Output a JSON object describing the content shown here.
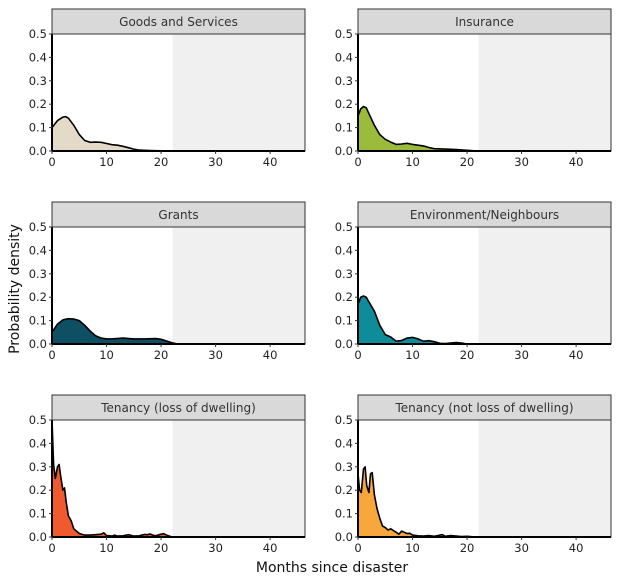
{
  "chart_data": {
    "type": "area",
    "subtype": "faceted density",
    "xlabel": "Months since disaster",
    "ylabel": "Probability density",
    "xlim": [
      0,
      46.4
    ],
    "ylim": [
      0,
      0.5
    ],
    "xticks": [
      0,
      10,
      20,
      30,
      40
    ],
    "xtick_labels": [
      "0",
      "10",
      "20",
      "30",
      "40"
    ],
    "yticks": [
      0,
      0.1,
      0.2,
      0.3,
      0.4,
      0.5
    ],
    "ytick_labels": [
      "0.0",
      "0.1",
      "0.2",
      "0.3",
      "0.4",
      "0.5"
    ],
    "shaded_region": {
      "from": 22.1,
      "to": 46.4,
      "color": "#f0f0f0"
    },
    "panel_background": "#ffffff",
    "strip_color": "#d9d9d9",
    "panels": [
      {
        "title": "Goods and Services",
        "color": "#e4dac8",
        "x": [
          0,
          1,
          2,
          2.5,
          3,
          4,
          5,
          6,
          7,
          8,
          9,
          10,
          11,
          12,
          13,
          14,
          15,
          16,
          18,
          20,
          22
        ],
        "y": [
          0.1,
          0.13,
          0.145,
          0.147,
          0.14,
          0.11,
          0.07,
          0.045,
          0.037,
          0.038,
          0.037,
          0.032,
          0.027,
          0.025,
          0.02,
          0.014,
          0.008,
          0.004,
          0.002,
          0.001,
          0
        ]
      },
      {
        "title": "Insurance",
        "color": "#9bbb3b",
        "x": [
          0,
          0.5,
          1,
          1.5,
          2,
          3,
          4,
          5,
          6,
          7,
          8,
          9,
          10,
          11,
          12,
          13,
          14,
          16,
          18,
          20,
          22
        ],
        "y": [
          0.15,
          0.18,
          0.19,
          0.185,
          0.16,
          0.11,
          0.07,
          0.05,
          0.038,
          0.028,
          0.03,
          0.033,
          0.028,
          0.025,
          0.022,
          0.015,
          0.01,
          0.008,
          0.006,
          0.003,
          0
        ]
      },
      {
        "title": "Grants",
        "color": "#0e4f63",
        "x": [
          0,
          1,
          2,
          3,
          4,
          5,
          6,
          7,
          8,
          9,
          10,
          11,
          13,
          15,
          17,
          19,
          20,
          21,
          22,
          23
        ],
        "y": [
          0.05,
          0.085,
          0.103,
          0.108,
          0.107,
          0.1,
          0.08,
          0.055,
          0.035,
          0.025,
          0.022,
          0.022,
          0.025,
          0.022,
          0.022,
          0.023,
          0.02,
          0.013,
          0.005,
          0
        ]
      },
      {
        "title": "Environment/Neighbours",
        "color": "#0f8c9a",
        "x": [
          0,
          0.5,
          1,
          1.5,
          2,
          3,
          4,
          5,
          6,
          7,
          8,
          9,
          10,
          11,
          12,
          13,
          14,
          15,
          16,
          18,
          19,
          20
        ],
        "y": [
          0.17,
          0.2,
          0.205,
          0.2,
          0.18,
          0.14,
          0.08,
          0.04,
          0.03,
          0.012,
          0.015,
          0.025,
          0.028,
          0.022,
          0.012,
          0.014,
          0.01,
          0.003,
          0.002,
          0.006,
          0.004,
          0
        ]
      },
      {
        "title": "Tenancy (loss of dwelling)",
        "color": "#ef5a2f",
        "x": [
          0,
          0.3,
          0.6,
          1,
          1.3,
          1.6,
          2,
          2.3,
          2.6,
          3,
          3.5,
          4,
          5,
          6,
          7,
          8,
          9,
          9.5,
          10,
          11,
          11.5,
          12,
          13,
          14,
          14.5,
          15,
          16,
          17,
          17.5,
          18,
          18.5,
          19,
          20,
          20.5,
          21,
          22
        ],
        "y": [
          0.5,
          0.31,
          0.25,
          0.3,
          0.31,
          0.26,
          0.2,
          0.21,
          0.15,
          0.09,
          0.07,
          0.035,
          0.015,
          0.008,
          0.008,
          0.01,
          0.012,
          0.018,
          0.006,
          0.004,
          0.008,
          0.004,
          0.005,
          0.01,
          0.007,
          0.004,
          0.005,
          0.011,
          0.01,
          0.013,
          0.008,
          0.005,
          0.012,
          0.014,
          0.008,
          0
        ]
      },
      {
        "title": "Tenancy (not loss of dwelling)",
        "color": "#f7a73c",
        "x": [
          0,
          0.3,
          0.6,
          1,
          1.3,
          1.6,
          2,
          2.3,
          2.6,
          3,
          3.5,
          4,
          4.5,
          5,
          5.5,
          6,
          7,
          7.5,
          8,
          8.5,
          9,
          9.5,
          10,
          11,
          12,
          13,
          14,
          15,
          15.5,
          16,
          17,
          18,
          19,
          20,
          21,
          22
        ],
        "y": [
          0.27,
          0.2,
          0.19,
          0.29,
          0.3,
          0.22,
          0.19,
          0.27,
          0.275,
          0.18,
          0.12,
          0.08,
          0.047,
          0.04,
          0.03,
          0.035,
          0.02,
          0.012,
          0.025,
          0.02,
          0.015,
          0.016,
          0.008,
          0.005,
          0.004,
          0.006,
          0.003,
          0.008,
          0.01,
          0.003,
          0.006,
          0.004,
          0.002,
          0.003,
          0.001,
          0
        ]
      }
    ]
  }
}
